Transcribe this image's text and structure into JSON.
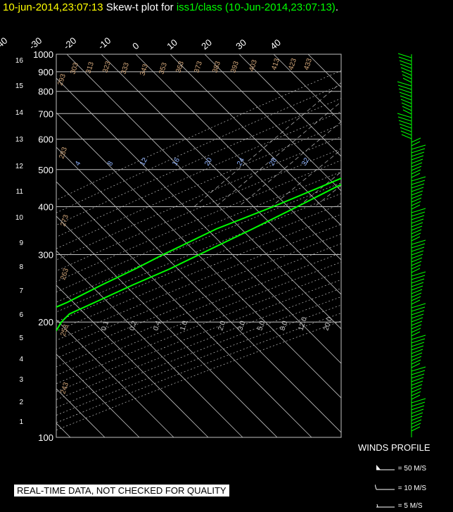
{
  "header": {
    "timestamp": "10-jun-2014,23:07:13",
    "plot_label": "Skew-t plot for",
    "source": "iss1/class (10-Jun-2014,23:07:13)",
    "end": "."
  },
  "notice": "REAL-TIME DATA, NOT CHECKED FOR QUALITY",
  "winds": {
    "title": "WINDS PROFILE",
    "legend": [
      "= 50 M/S",
      "= 10 M/S",
      "= 5 M/S"
    ]
  },
  "colors": {
    "background": "#000000",
    "grid": "#bfbfbf",
    "profile": "#00ff00",
    "timestamp": "#ffff00",
    "theta_labels": "#d2a679",
    "mixing_labels": "#8fb3ff"
  },
  "chart_data": {
    "type": "line",
    "title": "Skew-t plot",
    "y_axis": {
      "label": "pressure (mb)",
      "scale": "log",
      "range": [
        1000,
        100
      ],
      "ticks": [
        100,
        200,
        300,
        400,
        500,
        600,
        700,
        800,
        900,
        1000
      ]
    },
    "height_axis": {
      "label": "height (km)",
      "ticks": [
        1,
        2,
        3,
        4,
        5,
        6,
        7,
        8,
        9,
        10,
        11,
        12,
        13,
        14,
        15,
        16
      ]
    },
    "temperature_ticks": [
      "-120",
      "-110",
      "-100",
      "-90",
      "-80",
      "-70",
      "-60",
      "-50",
      "-40",
      "-30",
      "-20",
      "-10",
      "0",
      "10",
      "20",
      "30",
      "40"
    ],
    "dry_adiabat_labels": [
      "293",
      "303",
      "313",
      "323",
      "333",
      "343",
      "353",
      "363",
      "373",
      "383",
      "393",
      "403",
      "413",
      "423",
      "433",
      "283",
      "273",
      "263",
      "253",
      "243"
    ],
    "mixing_ratio_labels_upper": [
      "4",
      "8",
      "12",
      "16",
      "20",
      "24",
      "28",
      "32"
    ],
    "mixing_ratio_labels_lower": [
      "0.1",
      "0.2",
      "0.4",
      "1.0",
      "2.0",
      "3.0",
      "5.0",
      "8.0",
      "12.0",
      "20.0"
    ],
    "series": [
      {
        "name": "temperature",
        "points": [
          [
            1000,
            25.8
          ],
          [
            950,
            23.3
          ],
          [
            925,
            21.4
          ],
          [
            900,
            19.6
          ],
          [
            870,
            18.1
          ],
          [
            850,
            17.0
          ],
          [
            830,
            16.0
          ],
          [
            800,
            14.0
          ],
          [
            750,
            10.0
          ],
          [
            700,
            7.0
          ],
          [
            650,
            3.4
          ],
          [
            600,
            -1.0
          ],
          [
            550,
            -5.0
          ],
          [
            500,
            -9.0
          ],
          [
            450,
            -14.5
          ],
          [
            400,
            -20.0
          ],
          [
            350,
            -26.5
          ],
          [
            300,
            -34.5
          ],
          [
            275,
            -39.0
          ],
          [
            250,
            -45.0
          ],
          [
            225,
            -51.0
          ],
          [
            210,
            -55.0
          ],
          [
            200,
            -55.0
          ],
          [
            190,
            -54.0
          ],
          [
            180,
            -55.0
          ],
          [
            160,
            -56.5
          ],
          [
            150,
            -57.0
          ],
          [
            140,
            -59.0
          ],
          [
            130,
            -61.5
          ],
          [
            120,
            -60.5
          ],
          [
            110,
            -63.0
          ],
          [
            100,
            -66.0
          ]
        ]
      },
      {
        "name": "dewpoint",
        "points": [
          [
            1000,
            19.0
          ],
          [
            950,
            18.5
          ],
          [
            900,
            17.2
          ],
          [
            850,
            15.5
          ],
          [
            820,
            12.0
          ],
          [
            800,
            9.0
          ],
          [
            775,
            6.5
          ],
          [
            750,
            6.0
          ],
          [
            700,
            1.0
          ],
          [
            650,
            -0.5
          ],
          [
            600,
            -5.0
          ],
          [
            550,
            -8.0
          ],
          [
            500,
            -12.0
          ],
          [
            450,
            -19.0
          ],
          [
            400,
            -27.0
          ],
          [
            350,
            -37.0
          ],
          [
            300,
            -45.0
          ],
          [
            275,
            -49.0
          ],
          [
            250,
            -54.0
          ],
          [
            225,
            -59.0
          ],
          [
            210,
            -63.5
          ],
          [
            200,
            -65.0
          ],
          [
            190,
            -64.0
          ],
          [
            180,
            -70.0
          ],
          [
            170,
            -73.0
          ],
          [
            160,
            -79.0
          ],
          [
            150,
            -83.0
          ],
          [
            140,
            -87.0
          ],
          [
            130,
            -92.0
          ],
          [
            120,
            -88.0
          ],
          [
            110,
            -88.0
          ],
          [
            100,
            -87.5
          ]
        ]
      }
    ],
    "grid": true,
    "legend": "none"
  }
}
